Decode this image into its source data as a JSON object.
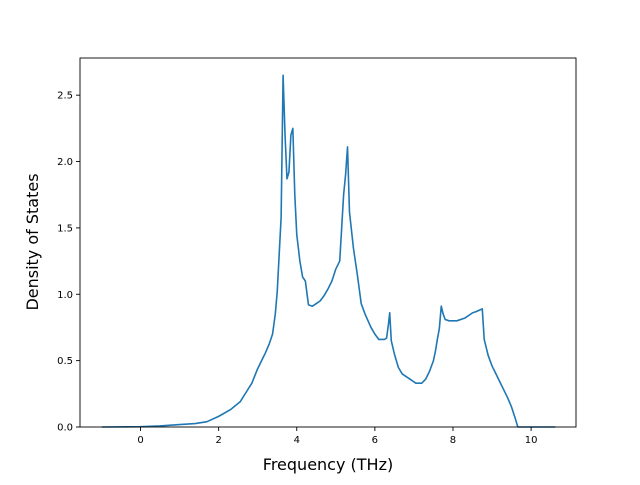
{
  "chart_data": {
    "type": "line",
    "title": "",
    "xlabel": "Frequency (THz)",
    "ylabel": "Density of States",
    "xlim": [
      -1.55,
      11.15
    ],
    "ylim": [
      0.0,
      2.78
    ],
    "xticks": [
      0,
      2,
      4,
      6,
      8,
      10
    ],
    "yticks": [
      0.0,
      0.5,
      1.0,
      1.5,
      2.0,
      2.5
    ],
    "xtick_labels": [
      "0",
      "2",
      "4",
      "6",
      "8",
      "10"
    ],
    "ytick_labels": [
      "0.0",
      "0.5",
      "1.0",
      "1.5",
      "2.0",
      "2.5"
    ],
    "grid": false,
    "line_color": "#1f77b4",
    "series": [
      {
        "x": [
          -0.97,
          0.0,
          0.5,
          1.0,
          1.4,
          1.7,
          2.0,
          2.3,
          2.55,
          2.7,
          2.85,
          3.0,
          3.1,
          3.2,
          3.3,
          3.38,
          3.45,
          3.5,
          3.55,
          3.6,
          3.65,
          3.7,
          3.75,
          3.8,
          3.85,
          3.9,
          3.95,
          4.0,
          4.08,
          4.15,
          4.22,
          4.3,
          4.4,
          4.5,
          4.6,
          4.7,
          4.8,
          4.9,
          5.0,
          5.05,
          5.1,
          5.15,
          5.2,
          5.25,
          5.3,
          5.35,
          5.45,
          5.55,
          5.65,
          5.75,
          5.9,
          6.0,
          6.1,
          6.25,
          6.3,
          6.35,
          6.38,
          6.42,
          6.5,
          6.6,
          6.7,
          6.9,
          7.05,
          7.2,
          7.3,
          7.4,
          7.5,
          7.55,
          7.6,
          7.65,
          7.7,
          7.75,
          7.8,
          7.9,
          8.1,
          8.3,
          8.5,
          8.6,
          8.75,
          8.8,
          8.9,
          9.0,
          9.1,
          9.2,
          9.3,
          9.4,
          9.5,
          9.6,
          9.66,
          9.75,
          10.0,
          10.3,
          10.6
        ],
        "y": [
          0.0,
          0.002,
          0.008,
          0.018,
          0.026,
          0.04,
          0.08,
          0.13,
          0.19,
          0.26,
          0.33,
          0.44,
          0.5,
          0.56,
          0.63,
          0.7,
          0.85,
          1.02,
          1.3,
          1.58,
          2.65,
          2.2,
          1.87,
          1.92,
          2.2,
          2.25,
          1.75,
          1.45,
          1.25,
          1.13,
          1.1,
          0.92,
          0.91,
          0.93,
          0.95,
          0.99,
          1.04,
          1.1,
          1.19,
          1.22,
          1.25,
          1.5,
          1.75,
          1.9,
          2.11,
          1.62,
          1.35,
          1.15,
          0.93,
          0.85,
          0.75,
          0.7,
          0.66,
          0.66,
          0.67,
          0.78,
          0.86,
          0.65,
          0.55,
          0.45,
          0.4,
          0.36,
          0.33,
          0.33,
          0.36,
          0.42,
          0.5,
          0.57,
          0.66,
          0.74,
          0.91,
          0.85,
          0.81,
          0.8,
          0.8,
          0.82,
          0.86,
          0.87,
          0.89,
          0.66,
          0.54,
          0.46,
          0.4,
          0.34,
          0.28,
          0.22,
          0.15,
          0.06,
          0.0,
          0.0,
          0.0,
          0.0,
          0.0
        ]
      }
    ]
  }
}
